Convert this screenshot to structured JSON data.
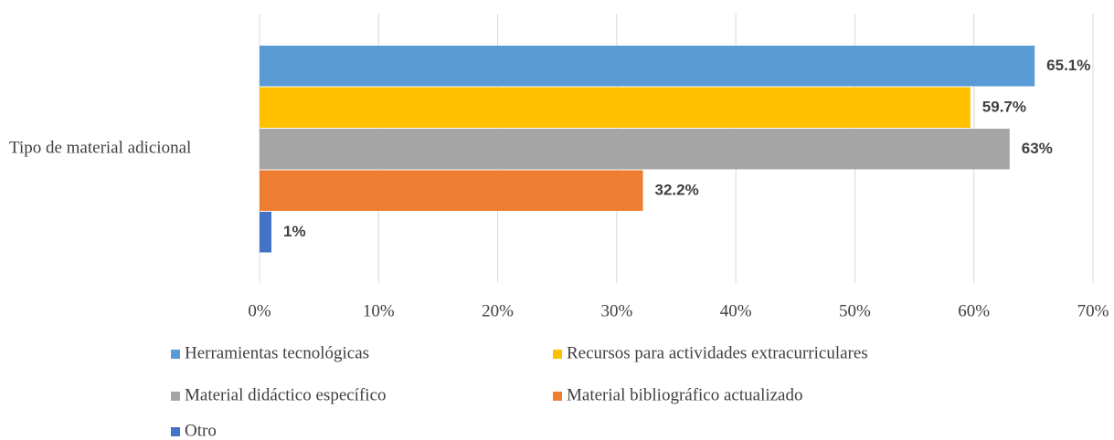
{
  "chart_data": {
    "type": "bar",
    "orientation": "horizontal",
    "categories": [
      "Tipo de material adicional"
    ],
    "series": [
      {
        "name": "Herramientas tecnológicas",
        "color": "#5b9bd5",
        "values": [
          65.1
        ],
        "value_labels": [
          "65.1%"
        ]
      },
      {
        "name": "Recursos para actividades extracurriculares",
        "color": "#ffc000",
        "values": [
          59.7
        ],
        "value_labels": [
          "59.7%"
        ]
      },
      {
        "name": "Material didáctico específico",
        "color": "#a5a5a5",
        "values": [
          63
        ],
        "value_labels": [
          "63%"
        ]
      },
      {
        "name": "Material bibliográfico actualizado",
        "color": "#ed7d31",
        "values": [
          32.2
        ],
        "value_labels": [
          "32.2%"
        ]
      },
      {
        "name": "Otro",
        "color": "#4472c4",
        "values": [
          1
        ],
        "value_labels": [
          "1%"
        ]
      }
    ],
    "xlim": [
      0,
      70
    ],
    "xticks": [
      {
        "value": 0,
        "label": "0%"
      },
      {
        "value": 10,
        "label": "10%"
      },
      {
        "value": 20,
        "label": "20%"
      },
      {
        "value": 30,
        "label": "30%"
      },
      {
        "value": 40,
        "label": "40%"
      },
      {
        "value": 50,
        "label": "50%"
      },
      {
        "value": 60,
        "label": "60%"
      },
      {
        "value": 70,
        "label": "70%"
      }
    ],
    "grid": true,
    "legend": "bottom"
  }
}
